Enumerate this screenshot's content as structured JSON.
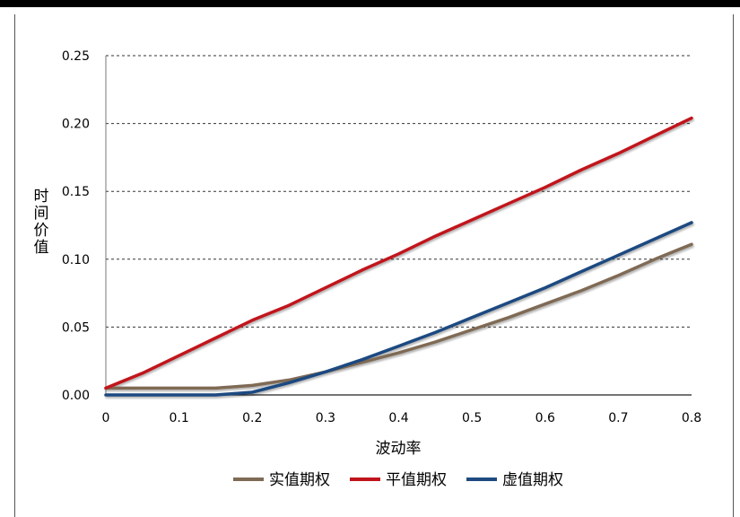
{
  "chart_data": {
    "type": "line",
    "title": "",
    "xlabel": "波动率",
    "ylabel": "时间价值",
    "xlim": [
      0,
      0.8
    ],
    "ylim": [
      0,
      0.25
    ],
    "xticks": [
      "0",
      "0.1",
      "0.2",
      "0.3",
      "0.4",
      "0.5",
      "0.6",
      "0.7",
      "0.8"
    ],
    "yticks": [
      "0.00",
      "0.05",
      "0.10",
      "0.15",
      "0.20",
      "0.25"
    ],
    "grid": "horizontal-dashed",
    "legend_position": "bottom",
    "x": [
      0,
      0.05,
      0.1,
      0.15,
      0.2,
      0.25,
      0.3,
      0.35,
      0.4,
      0.45,
      0.5,
      0.55,
      0.6,
      0.65,
      0.7,
      0.75,
      0.8
    ],
    "series": [
      {
        "name": "实值期权",
        "color": "#7f6a55",
        "values": [
          0.005,
          0.005,
          0.005,
          0.005,
          0.007,
          0.011,
          0.017,
          0.024,
          0.031,
          0.039,
          0.048,
          0.057,
          0.067,
          0.077,
          0.088,
          0.1,
          0.111
        ]
      },
      {
        "name": "平值期权",
        "color": "#c0141c",
        "values": [
          0.005,
          0.016,
          0.029,
          0.042,
          0.055,
          0.066,
          0.079,
          0.092,
          0.104,
          0.117,
          0.129,
          0.141,
          0.153,
          0.166,
          0.178,
          0.191,
          0.204
        ]
      },
      {
        "name": "虚值期权",
        "color": "#1f4a80",
        "values": [
          0.0,
          0.0,
          0.0,
          0.0,
          0.002,
          0.009,
          0.017,
          0.026,
          0.036,
          0.046,
          0.057,
          0.068,
          0.079,
          0.091,
          0.103,
          0.115,
          0.127
        ]
      }
    ]
  }
}
